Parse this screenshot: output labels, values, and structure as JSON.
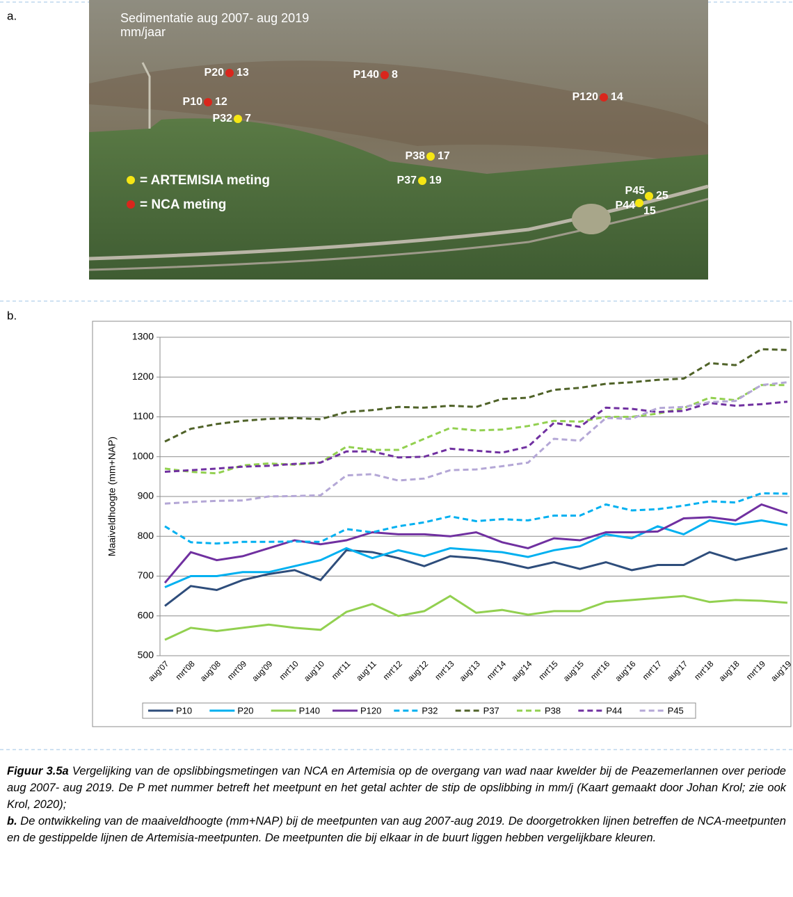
{
  "map": {
    "label": "a.",
    "title": "Sedimentatie aug 2007- aug 2019",
    "unit": "mm/jaar",
    "points": [
      {
        "name": "P20",
        "value": 13,
        "color": "#d9261c"
      },
      {
        "name": "P140",
        "value": 8,
        "color": "#d9261c"
      },
      {
        "name": "P10",
        "value": 12,
        "color": "#d9261c"
      },
      {
        "name": "P120",
        "value": 14,
        "color": "#d9261c"
      },
      {
        "name": "P32",
        "value": 7,
        "color": "#f5e614"
      },
      {
        "name": "P38",
        "value": 17,
        "color": "#f5e614"
      },
      {
        "name": "P37",
        "value": 19,
        "color": "#f5e614"
      },
      {
        "name": "P45",
        "value": 25,
        "color": "#f5e614"
      },
      {
        "name": "P44",
        "value": 15,
        "color": "#f5e614"
      }
    ],
    "legend": [
      {
        "label": "= ARTEMISIA meting",
        "color": "#f5e614"
      },
      {
        "label": "= NCA meting",
        "color": "#d9261c"
      }
    ]
  },
  "chart_label": "b.",
  "chart_data": {
    "type": "line",
    "y_label": "Maaiveldhoogte (mm+NAP)",
    "categories": [
      "aug'07",
      "mrt'08",
      "aug'08",
      "mrt'09",
      "aug'09",
      "mrt'10",
      "aug'10",
      "mrt'11",
      "aug'11",
      "mrt'12",
      "aug'12",
      "mrt'13",
      "aug'13",
      "mrt'14",
      "aug'14",
      "mrt'15",
      "aug'15",
      "mrt'16",
      "aug'16",
      "mrt'17",
      "aug'17",
      "mrt'18",
      "aug'18",
      "mrt'19",
      "aug'19"
    ],
    "ylim": [
      500,
      1300
    ],
    "yticks": [
      500,
      600,
      700,
      800,
      900,
      1000,
      1100,
      1200,
      1300
    ],
    "grid": true,
    "legend": "bottom",
    "series": [
      {
        "name": "P10",
        "color": "#2e4d7b",
        "dashed": false,
        "values": [
          625,
          675,
          665,
          690,
          705,
          715,
          690,
          765,
          760,
          745,
          725,
          750,
          745,
          735,
          720,
          735,
          718,
          735,
          715,
          728,
          728,
          760,
          740,
          755,
          770
        ]
      },
      {
        "name": "P20",
        "color": "#00b0f0",
        "dashed": false,
        "values": [
          672,
          700,
          700,
          710,
          710,
          725,
          740,
          770,
          745,
          765,
          750,
          770,
          765,
          760,
          748,
          765,
          775,
          805,
          795,
          825,
          805,
          840,
          830,
          840,
          828
        ]
      },
      {
        "name": "P140",
        "color": "#92d050",
        "dashed": false,
        "values": [
          540,
          570,
          562,
          570,
          578,
          570,
          565,
          610,
          630,
          600,
          612,
          650,
          608,
          615,
          603,
          612,
          612,
          635,
          640,
          645,
          650,
          635,
          640,
          638,
          633
        ]
      },
      {
        "name": "P120",
        "color": "#7030a0",
        "dashed": false,
        "values": [
          683,
          760,
          740,
          750,
          770,
          790,
          780,
          790,
          810,
          805,
          805,
          800,
          810,
          785,
          770,
          795,
          790,
          810,
          810,
          812,
          845,
          848,
          840,
          880,
          858
        ]
      },
      {
        "name": "P32",
        "color": "#00b0f0",
        "dashed": true,
        "values": [
          825,
          785,
          782,
          786,
          786,
          787,
          786,
          818,
          810,
          825,
          835,
          850,
          838,
          843,
          840,
          852,
          852,
          880,
          865,
          868,
          877,
          888,
          885,
          908,
          907
        ]
      },
      {
        "name": "P37",
        "color": "#4f6228",
        "dashed": true,
        "values": [
          1038,
          1070,
          1082,
          1090,
          1095,
          1097,
          1094,
          1112,
          1117,
          1125,
          1123,
          1128,
          1125,
          1145,
          1148,
          1168,
          1173,
          1183,
          1187,
          1193,
          1196,
          1235,
          1230,
          1270,
          1268
        ]
      },
      {
        "name": "P38",
        "color": "#92d050",
        "dashed": true,
        "values": [
          970,
          962,
          958,
          978,
          983,
          980,
          985,
          1025,
          1017,
          1017,
          1045,
          1072,
          1066,
          1068,
          1077,
          1090,
          1088,
          1100,
          1100,
          1108,
          1122,
          1148,
          1142,
          1180,
          1180
        ]
      },
      {
        "name": "P44",
        "color": "#7030a0",
        "dashed": true,
        "values": [
          962,
          966,
          970,
          975,
          977,
          982,
          985,
          1013,
          1013,
          998,
          1000,
          1020,
          1015,
          1010,
          1025,
          1085,
          1075,
          1123,
          1120,
          1112,
          1115,
          1135,
          1128,
          1132,
          1138
        ]
      },
      {
        "name": "P45",
        "color": "#b4a7d6",
        "dashed": true,
        "values": [
          882,
          886,
          889,
          890,
          900,
          901,
          903,
          953,
          956,
          940,
          945,
          966,
          968,
          976,
          985,
          1045,
          1040,
          1097,
          1095,
          1122,
          1125,
          1137,
          1140,
          1180,
          1187
        ]
      }
    ]
  },
  "caption": {
    "a_head": "Figuur 3.5a",
    "a_text": " Vergelijking van de opslibbingsmetingen van NCA en Artemisia op de overgang van wad naar kwelder bij de Peazemerlannen over periode aug 2007- aug 2019. De P met nummer betreft het meetpunt en het getal achter de stip de opslibbing in mm/j (Kaart gemaakt door Johan Krol; zie ook Krol, 2020);",
    "b_head": "b.",
    "b_text": " De ontwikkeling van de maaiveldhoogte (mm+NAP) bij de meetpunten van aug 2007-aug 2019. De doorgetrokken lijnen betreffen de NCA-meetpunten en de gestippelde lijnen de Artemisia-meetpunten. De meetpunten die bij elkaar in de buurt liggen hebben vergelijkbare kleuren."
  }
}
